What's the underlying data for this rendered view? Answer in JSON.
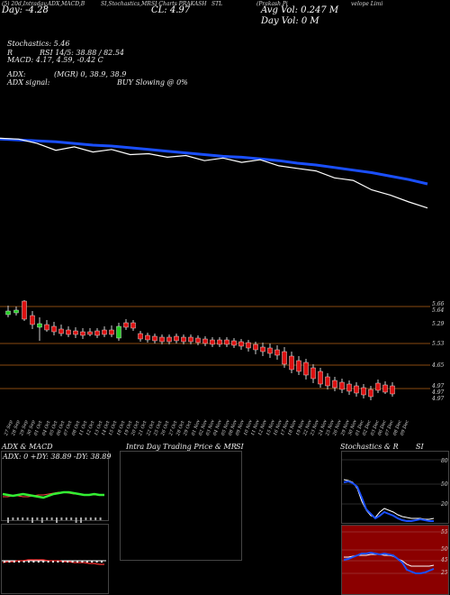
{
  "header": {
    "line1_left": "(5) 20d,Intraday,ADX,MACD,B",
    "line1_mid": "SI,Stochastics,MR",
    "line1_mid2": "SI Charts PRAKASH",
    "line1_mid3": "STL",
    "line1_right": "(Prakash Pi",
    "line1_right2": "velope  Limi",
    "cl_label": "CL: 4.97",
    "day_label": "Day: -4.28",
    "avg_vol": "Avg Vol: 0.247 M",
    "day_vol": "Day Vol: 0   M"
  },
  "indicators": {
    "stoch": "Stochastics: 5.46",
    "rsi": "RSI 14/5: 38.88 / 82.54",
    "rsi_prefix": "R",
    "macd": "MACD: 4.17, 4.59, -0.42  C",
    "adx": "ADX:",
    "adx_val": "(MGR) 0, 38.9, 38.9",
    "adx_signal": "ADX  signal:",
    "signal_val": "BUY Slowing @ 0%"
  },
  "price_levels": [
    "5.66",
    "5.64",
    "5.29",
    "5.53",
    "4.65",
    "4.97",
    "4.97",
    "4.97"
  ],
  "dates": [
    "27 Sep",
    "28 Sep",
    "29 Sep",
    "30 Sep",
    "01 Oct",
    "04 Oct",
    "05 Oct",
    "06 Oct",
    "07 Oct",
    "08 Oct",
    "11 Oct",
    "12 Oct",
    "13 Oct",
    "14 Oct",
    "15 Oct",
    "18 Oct",
    "19 Oct",
    "20 Oct",
    "21 Oct",
    "22 Oct",
    "25 Oct",
    "26 Oct",
    "27 Oct",
    "28 Oct",
    "29 Oct",
    "01 Nov",
    "02 Nov",
    "03 Nov",
    "04 Nov",
    "05 Nov",
    "08 Nov",
    "09 Nov",
    "10 Nov",
    "11 Nov",
    "12 Nov",
    "15 Nov",
    "16 Nov",
    "17 Nov",
    "18 Nov",
    "19 Nov",
    "22 Nov",
    "23 Nov",
    "24 Nov",
    "25 Nov",
    "26 Nov",
    "29 Nov",
    "30 Nov",
    "01 Dec",
    "02 Dec",
    "03 Dec",
    "06 Dec",
    "07 Dec",
    "08 Dec",
    "09 Dec"
  ],
  "panels": {
    "adx_title": "ADX  & MACD",
    "adx_readout": "ADX: 0   +DY: 38.89  -DY: 38.89",
    "intraday_title": "Intra  Day Trading Price  & MR",
    "intraday_title2": "SI",
    "stoch_title": "Stochastics & R",
    "stoch_title2": "SI",
    "stoch_levels": [
      "80",
      "50",
      "20"
    ],
    "rsi_levels": [
      "55",
      "50",
      "45",
      "25"
    ]
  },
  "colors": {
    "ma": "#1a4fff",
    "up": "#22cc22",
    "down": "#dd1111",
    "level": "#8a4a10"
  },
  "chart_data": {
    "type": "line",
    "series": [
      {
        "values": [
          5.95,
          5.94,
          5.93,
          5.92,
          5.9,
          5.88,
          5.87,
          5.85,
          5.83,
          5.81,
          5.79,
          5.77,
          5.75,
          5.74,
          5.72,
          5.7,
          5.67,
          5.65,
          5.62,
          5.59,
          5.56,
          5.52,
          5.48,
          5.43
        ]
      },
      {
        "values": [
          5.96,
          5.95,
          5.9,
          5.82,
          5.86,
          5.8,
          5.83,
          5.77,
          5.78,
          5.74,
          5.76,
          5.7,
          5.73,
          5.68,
          5.71,
          5.64,
          5.61,
          5.58,
          5.5,
          5.47,
          5.36,
          5.3,
          5.22,
          5.15
        ]
      }
    ]
  }
}
